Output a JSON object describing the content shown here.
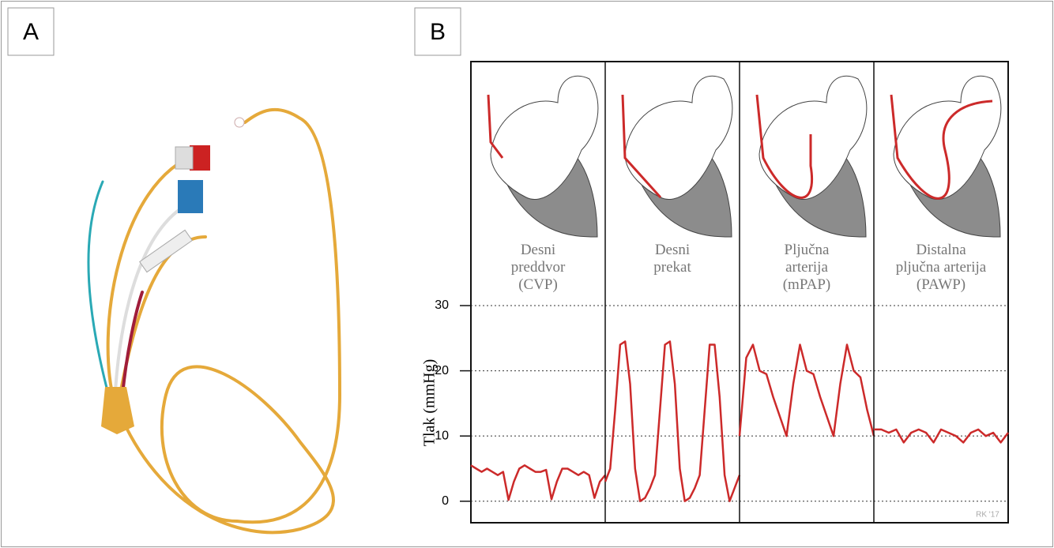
{
  "figure": {
    "panel_labels": [
      "A",
      "B"
    ],
    "signature": "RK '17"
  },
  "chart_data": {
    "type": "line",
    "y_label": "Tlak  (mmHg)",
    "ylim": [
      -3.3,
      30
    ],
    "yticks": [
      0,
      10,
      20,
      30
    ],
    "grid": true,
    "series": [
      {
        "name": "Desni\npreddvor\n(CVP)",
        "color": "#cc2a2a",
        "values": [
          5.5,
          5,
          4.5,
          5,
          4.5,
          4,
          4.5,
          0.2,
          3,
          5,
          5.5,
          5,
          4.5,
          4.5,
          4.8,
          0.3,
          3,
          5,
          5,
          4.5,
          4,
          4.5,
          4,
          0.5,
          3,
          4
        ]
      },
      {
        "name": "Desni\nprekat",
        "color": "#cc2a2a",
        "values": [
          3,
          5,
          14,
          24,
          24.5,
          18,
          5,
          0,
          0.5,
          2,
          4,
          14,
          24,
          24.5,
          18,
          5,
          0,
          0.5,
          2,
          4,
          14,
          24,
          24,
          16,
          4,
          0,
          2,
          4
        ]
      },
      {
        "name": "Pljučna\narterija\n(mPAP)",
        "color": "#cc2a2a",
        "values": [
          10,
          22,
          24,
          20,
          19.5,
          16,
          13,
          10,
          18,
          24,
          20,
          19.5,
          16,
          13,
          10,
          18,
          24,
          20,
          19,
          14,
          10
        ]
      },
      {
        "name": "Distalna\npljučna arterija\n(PAWP)",
        "color": "#cc2a2a",
        "values": [
          11,
          11,
          10.5,
          11,
          9,
          10.5,
          11,
          10.5,
          9,
          11,
          10.5,
          10,
          9,
          10.5,
          11,
          10,
          10.5,
          9,
          10.5
        ]
      }
    ]
  }
}
